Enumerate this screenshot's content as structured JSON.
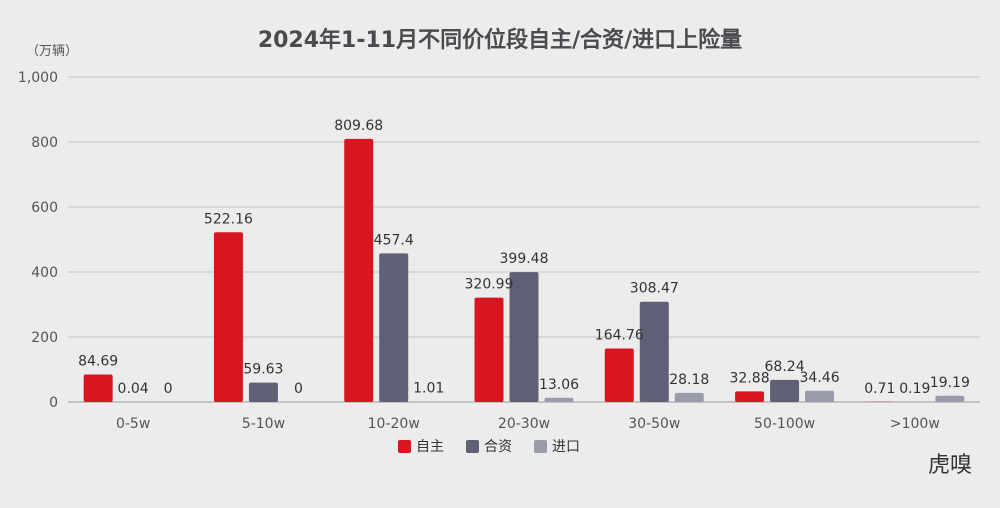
{
  "chart_data": {
    "type": "bar",
    "title": "2024年1-11月不同价位段自主/合资/进口上险量",
    "unit_label": "（万辆）",
    "categories": [
      "0-5w",
      "5-10w",
      "10-20w",
      "20-30w",
      "30-50w",
      "50-100w",
      ">100w"
    ],
    "series": [
      {
        "name": "自主",
        "color": "#d7161f",
        "values": [
          84.69,
          522.16,
          809.68,
          320.99,
          164.76,
          32.88,
          0.71
        ],
        "labels": [
          "84.69",
          "522.16",
          "809.68",
          "320.99",
          "164.76",
          "32.88",
          "0.71"
        ]
      },
      {
        "name": "合资",
        "color": "#5f6075",
        "values": [
          0.04,
          59.63,
          457.4,
          399.48,
          308.47,
          68.24,
          0.19
        ],
        "labels": [
          "0.04",
          "59.63",
          "457.4",
          "399.48",
          "308.47",
          "68.24",
          "0.19"
        ]
      },
      {
        "name": "进口",
        "color": "#9a9cab",
        "values": [
          0,
          0,
          1.01,
          13.06,
          28.18,
          34.46,
          19.19
        ],
        "labels": [
          "0",
          "0",
          "1.01",
          "13.06",
          "28.18",
          "34.46",
          "19.19"
        ]
      }
    ],
    "ylim": [
      0,
      1000
    ],
    "yticks": [
      0,
      200,
      400,
      600,
      800,
      1000
    ],
    "ytick_labels": [
      "0",
      "200",
      "400",
      "600",
      "800",
      "1,000"
    ],
    "grid": true,
    "legend_position": "bottom"
  },
  "watermark": "虎嗅"
}
